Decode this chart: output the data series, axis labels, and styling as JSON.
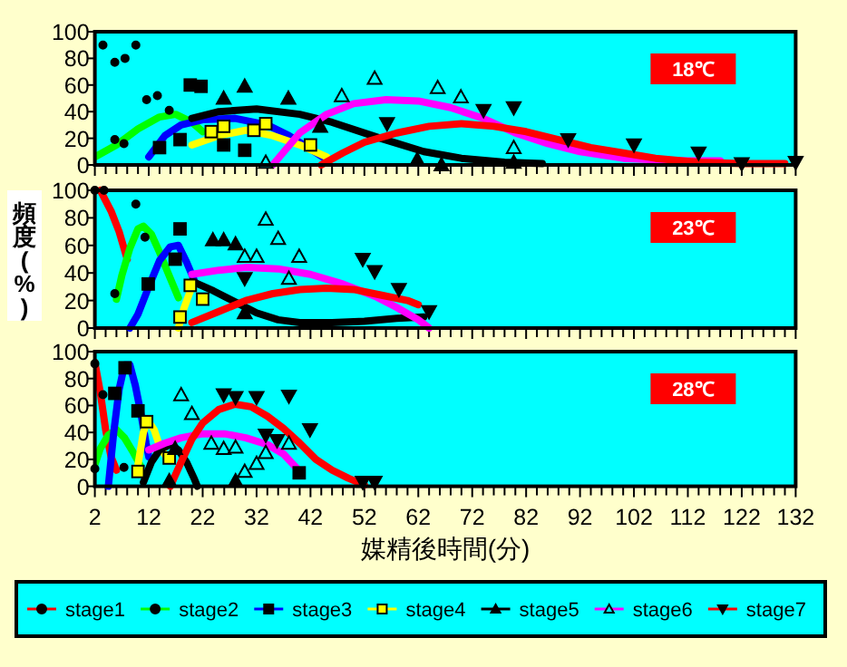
{
  "chart_data": [
    {
      "type": "line",
      "annotations": [
        "18℃"
      ],
      "xlim": [
        2,
        132
      ],
      "xticks": [
        2,
        12,
        22,
        32,
        42,
        52,
        62,
        72,
        82,
        92,
        102,
        112,
        122,
        132
      ],
      "ylim": [
        0,
        100
      ],
      "yticks": [
        0,
        20,
        40,
        60,
        80,
        100
      ],
      "tick_labels": "y",
      "line_style": "solid",
      "series": [
        {
          "color": "#00ff00",
          "x": [
            2,
            6,
            10,
            14,
            17,
            20,
            22
          ],
          "values": [
            6,
            15,
            27,
            36,
            38,
            32,
            25
          ]
        },
        {
          "color": "#0000ff",
          "x": [
            12,
            15,
            18,
            22,
            28,
            34,
            38,
            42,
            45
          ],
          "values": [
            6,
            22,
            30,
            34,
            35,
            30,
            22,
            12,
            4
          ]
        },
        {
          "color": "#ffff00",
          "x": [
            20,
            25,
            30,
            35,
            40,
            45
          ],
          "values": [
            15,
            22,
            26,
            22,
            15,
            6
          ]
        },
        {
          "color": "#000000",
          "x": [
            20,
            25,
            32,
            40,
            46,
            55,
            63,
            70,
            78,
            85
          ],
          "values": [
            35,
            40,
            42,
            38,
            32,
            20,
            10,
            5,
            2,
            1
          ]
        },
        {
          "color": "#ff00ff",
          "x": [
            35,
            40,
            45,
            50,
            56,
            62,
            68,
            74,
            80,
            86,
            92,
            100,
            110,
            118
          ],
          "values": [
            0,
            24,
            38,
            46,
            49,
            48,
            43,
            35,
            24,
            16,
            10,
            5,
            3,
            3
          ]
        },
        {
          "color": "#ff0000",
          "x": [
            44,
            48,
            52,
            58,
            64,
            70,
            76,
            82,
            88,
            94,
            100,
            106,
            114,
            122,
            130
          ],
          "values": [
            0,
            9,
            17,
            24,
            29,
            31,
            29,
            25,
            19,
            13,
            9,
            5,
            2,
            1,
            1
          ]
        },
        {
          "type": "scatter",
          "marker": "circle",
          "color": "#000000",
          "x": [
            3.5,
            5.7,
            7.6,
            9.6,
            11.6,
            13.6
          ],
          "values": [
            90,
            77,
            80,
            90,
            49,
            52
          ]
        },
        {
          "type": "scatter",
          "marker": "circle",
          "color": "#000000",
          "x": [
            5.7,
            7.4,
            15.8
          ],
          "values": [
            19,
            16,
            41
          ]
        },
        {
          "type": "scatter",
          "marker": "square",
          "color": "#000000",
          "x": [
            19.7,
            21.7,
            14,
            17.8,
            25.9,
            29.8
          ],
          "values": [
            60,
            59,
            13,
            19,
            15,
            11
          ]
        },
        {
          "type": "scatter",
          "marker": "square",
          "color": "#ffff00",
          "x": [
            23.6,
            25.9,
            31.5,
            33.7,
            42
          ],
          "values": [
            25,
            29,
            26,
            31,
            15
          ]
        },
        {
          "type": "scatter",
          "marker": "triangle",
          "color": "#000000",
          "x": [
            25.9,
            29.8,
            37.9,
            43.8,
            61.8,
            66.3,
            79.7
          ],
          "values": [
            50,
            59,
            50,
            29,
            4,
            0,
            2
          ]
        },
        {
          "type": "scatter",
          "marker": "triangle",
          "color": "#00ffff",
          "x": [
            53.9,
            47.8,
            65.6,
            69.9,
            33.7,
            79.7
          ],
          "values": [
            65,
            52,
            58,
            51,
            2,
            13
          ]
        },
        {
          "type": "scatter",
          "marker": "triangle-down",
          "color": "#000000",
          "x": [
            79.7,
            74.1,
            56.2,
            114,
            132,
            122,
            102,
            89.8
          ],
          "values": [
            43,
            41,
            31,
            9,
            2,
            1,
            15,
            19
          ]
        }
      ]
    },
    {
      "type": "line",
      "annotations": [
        "23℃"
      ],
      "ylabel": "頻度(%)",
      "xlim": [
        2,
        132
      ],
      "xticks": [
        2,
        12,
        22,
        32,
        42,
        52,
        62,
        72,
        82,
        92,
        102,
        112,
        122,
        132
      ],
      "ylim": [
        0,
        100
      ],
      "yticks": [
        0,
        20,
        40,
        60,
        80,
        100
      ],
      "tick_labels": "y",
      "line_style": "solid",
      "series": [
        {
          "color": "#ff0000",
          "x": [
            3,
            5,
            6.5,
            8
          ],
          "values": [
            100,
            85,
            70,
            50
          ]
        },
        {
          "color": "#00ff00",
          "x": [
            6,
            7,
            8.5,
            10,
            11,
            12.5,
            14,
            16,
            17.5
          ],
          "values": [
            21,
            38,
            58,
            72,
            74,
            68,
            55,
            36,
            22
          ]
        },
        {
          "color": "#0000ff",
          "x": [
            8.5,
            10,
            12,
            14,
            16,
            17.5,
            19,
            20.5
          ],
          "values": [
            0,
            10,
            30,
            49,
            59,
            60,
            48,
            34
          ]
        },
        {
          "color": "#ffff00",
          "x": [
            17.5,
            18.5,
            20
          ],
          "values": [
            0,
            14,
            30
          ]
        },
        {
          "color": "#000000",
          "x": [
            20,
            24,
            28,
            32,
            36,
            40,
            46,
            52,
            58,
            63
          ],
          "values": [
            34,
            27,
            19,
            11,
            6,
            4,
            4,
            5,
            7,
            8
          ]
        },
        {
          "color": "#ff00ff",
          "x": [
            20,
            25,
            30,
            36,
            42,
            48,
            54,
            58,
            62,
            64
          ],
          "values": [
            39,
            42,
            44,
            43,
            39,
            32,
            23,
            15,
            6,
            0
          ]
        },
        {
          "color": "#ff0000",
          "x": [
            20,
            25,
            30,
            35,
            40,
            45,
            50,
            55,
            60,
            62
          ],
          "values": [
            4,
            12,
            20,
            25,
            28,
            29,
            28,
            24,
            20,
            17
          ]
        },
        {
          "type": "scatter",
          "marker": "circle",
          "color": "#000000",
          "x": [
            2,
            3.7,
            9.6
          ],
          "values": [
            100,
            100,
            90
          ]
        },
        {
          "type": "scatter",
          "marker": "circle",
          "color": "#000000",
          "x": [
            5.7,
            11.3
          ],
          "values": [
            25,
            66
          ]
        },
        {
          "type": "scatter",
          "marker": "square",
          "color": "#000000",
          "x": [
            17.8,
            11.9,
            16.9
          ],
          "values": [
            72,
            32,
            50
          ]
        },
        {
          "type": "scatter",
          "marker": "square",
          "color": "#ffff00",
          "x": [
            17.8,
            19.7,
            22
          ],
          "values": [
            8,
            31,
            21
          ]
        },
        {
          "type": "scatter",
          "marker": "triangle",
          "color": "#000000",
          "x": [
            23.9,
            25.9,
            28.1,
            29.8
          ],
          "values": [
            64,
            64,
            61,
            11
          ]
        },
        {
          "type": "scatter",
          "marker": "triangle",
          "color": "#00ffff",
          "x": [
            33.7,
            36,
            39.9,
            29.8,
            32,
            38
          ],
          "values": [
            79,
            65,
            52,
            52,
            52,
            36
          ]
        },
        {
          "type": "scatter",
          "marker": "triangle-down",
          "color": "#000000",
          "x": [
            51.7,
            53.9,
            29.8,
            58.4,
            64
          ],
          "values": [
            50,
            41,
            36,
            28,
            12
          ]
        }
      ]
    },
    {
      "type": "line",
      "annotations": [
        "28℃"
      ],
      "xlabel": "媒精後時間(分)",
      "xlim": [
        2,
        132
      ],
      "xticks": [
        2,
        12,
        22,
        32,
        42,
        52,
        62,
        72,
        82,
        92,
        102,
        112,
        122,
        132
      ],
      "ylim": [
        0,
        100
      ],
      "yticks": [
        0,
        20,
        40,
        60,
        80,
        100
      ],
      "legend": "bottom",
      "line_style": "solid",
      "series": [
        {
          "name": "stage1",
          "color": "#ff0000",
          "x": [
            2,
            3,
            4,
            5,
            6
          ],
          "values": [
            92,
            70,
            42,
            22,
            12
          ]
        },
        {
          "name": "stage2",
          "color": "#00ff00",
          "x": [
            2,
            3,
            4.5,
            6,
            7.5,
            9,
            10.5
          ],
          "values": [
            16,
            28,
            38,
            42,
            36,
            26,
            15
          ]
        },
        {
          "name": "stage3",
          "color": "#0000ff",
          "x": [
            4.5,
            5.5,
            6.5,
            7.5,
            8.5,
            9.5,
            10.5,
            11.5,
            12
          ],
          "values": [
            0,
            40,
            72,
            90,
            90,
            75,
            55,
            32,
            22
          ]
        },
        {
          "name": "stage4",
          "color": "#ffff00",
          "x": [
            10,
            11,
            11.8,
            13,
            14,
            15.2
          ],
          "values": [
            16,
            40,
            49,
            42,
            30,
            22
          ]
        },
        {
          "name": "stage5",
          "color": "#000000",
          "x": [
            11,
            12.5,
            14,
            16,
            17.5,
            19,
            20.5,
            21
          ],
          "values": [
            3,
            18,
            27,
            31,
            27,
            18,
            5,
            0
          ]
        },
        {
          "name": "stage6",
          "color": "#ff00ff",
          "x": [
            12,
            15,
            18,
            22,
            26,
            30,
            34,
            37,
            40
          ],
          "values": [
            27,
            32,
            36,
            39,
            39,
            36,
            31,
            24,
            11
          ]
        },
        {
          "name": "stage7",
          "color": "#ff0000",
          "x": [
            16,
            18,
            20,
            22,
            25,
            28,
            31,
            34,
            37,
            40,
            43,
            46,
            49,
            52
          ],
          "values": [
            0,
            18,
            35,
            47,
            57,
            61,
            59,
            52,
            43,
            32,
            20,
            12,
            6,
            1
          ]
        },
        {
          "type": "scatter",
          "marker": "circle",
          "color": "#000000",
          "x": [
            2,
            3.5,
            2
          ],
          "values": [
            91,
            68,
            13
          ]
        },
        {
          "type": "scatter",
          "marker": "circle",
          "color": "#000000",
          "x": [
            7.4
          ],
          "values": [
            14
          ]
        },
        {
          "type": "scatter",
          "marker": "square",
          "color": "#000000",
          "x": [
            5.7,
            7.6,
            10,
            39.9
          ],
          "values": [
            69,
            88,
            56,
            10
          ]
        },
        {
          "type": "scatter",
          "marker": "square",
          "color": "#ffff00",
          "x": [
            11.6,
            10,
            15.8
          ],
          "values": [
            48,
            11,
            21
          ]
        },
        {
          "type": "scatter",
          "marker": "triangle",
          "color": "#000000",
          "x": [
            28.1,
            15.8,
            16.9
          ],
          "values": [
            4,
            4,
            28
          ]
        },
        {
          "type": "scatter",
          "marker": "triangle",
          "color": "#00ffff",
          "x": [
            18,
            20,
            23.6,
            25.9,
            28.1,
            29.8,
            32,
            33.7,
            38
          ],
          "values": [
            68,
            54,
            32,
            28,
            29,
            11,
            17,
            25,
            32
          ]
        },
        {
          "type": "scatter",
          "marker": "triangle-down",
          "color": "#000000",
          "x": [
            25.9,
            28.1,
            32,
            38,
            41.9,
            33.7,
            35.8,
            51.7,
            53.9
          ],
          "values": [
            68,
            66,
            66,
            67,
            42,
            38,
            34,
            3,
            3
          ]
        }
      ]
    }
  ]
}
